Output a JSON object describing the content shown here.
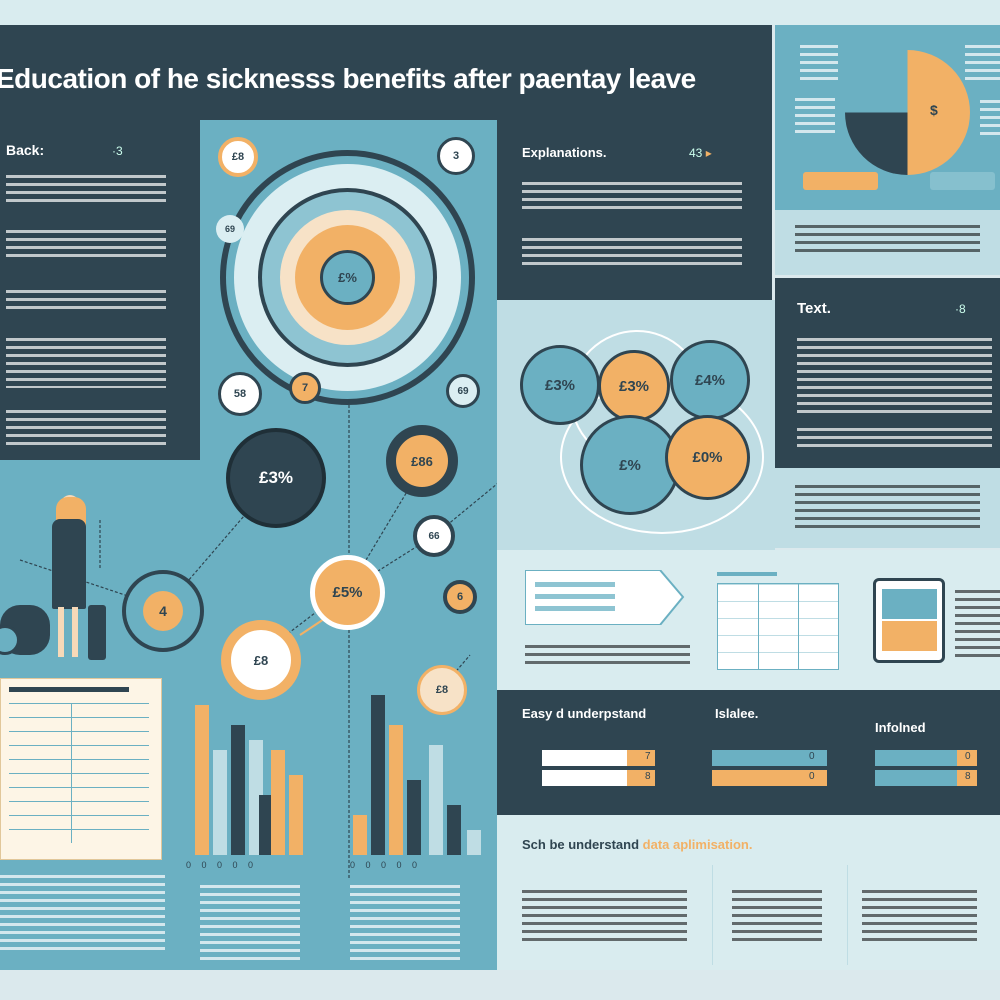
{
  "header": {
    "title": "Education of he sicknesss benefits after paentay leave"
  },
  "left_panel": {
    "heading": "Back:",
    "marker": "·3"
  },
  "center": {
    "top_circle_label": "£8",
    "small_top_left": "£8",
    "small_top_right": "3",
    "target_center": "£%",
    "mid_left_small": "58",
    "mid_arrow": "7",
    "mid_right_small": "69",
    "dark_circle": "£3%",
    "ring_circle": "£86",
    "left_small_circle": "4",
    "bottom_left_circle": "£8",
    "center_orange": "£5%",
    "right_small": "66",
    "right_orange": "6",
    "bottom_right_small": "£8",
    "tiny_label": "69"
  },
  "explanations": {
    "heading": "Explanations.",
    "value": "43",
    "arrow": "▸"
  },
  "venn": {
    "a": "£3%",
    "b": "£3%",
    "c": "£4%",
    "d": "£%",
    "e": "£0%"
  },
  "pie_panel": {
    "center_label": "$"
  },
  "text_panel": {
    "heading": "Text.",
    "marker": "·8"
  },
  "bottom_dark": {
    "col1": "Easy d underpstand",
    "col2": "Islalee.",
    "col3": "Infolned",
    "v1a": "7",
    "v1b": "8",
    "v2a": "0",
    "v2b": "0",
    "v3a": "0",
    "v3b": "8"
  },
  "summary": {
    "prefix": "Sch be understand",
    "highlight": "data aplimisation."
  },
  "bar_axis_left": "0 0 0 0 0",
  "bar_axis_right": "0 0 0 0 0",
  "colors": {
    "dark": "#2f4551",
    "blue": "#6bb0c2",
    "orange": "#f2b166",
    "light": "#bfdde4"
  }
}
